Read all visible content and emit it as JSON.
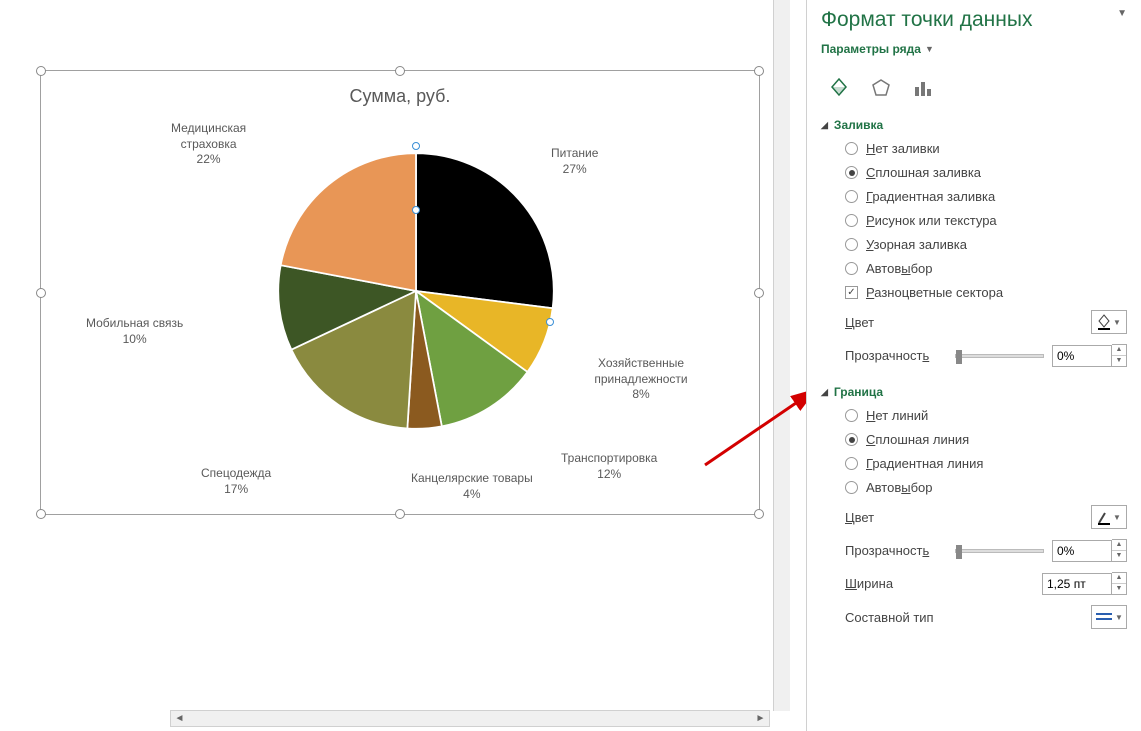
{
  "chart": {
    "title": "Сумма, руб.",
    "type": "pie",
    "background_color": "#ffffff",
    "title_color": "#595959",
    "title_fontsize": 18,
    "label_fontsize": 12,
    "label_color": "#595959",
    "slices": [
      {
        "label": "Питание",
        "percent": 27,
        "color": "#000000"
      },
      {
        "label": "Хозяйственные\nпринадлежности",
        "percent": 8,
        "color": "#e8b627"
      },
      {
        "label": "Транспортировка",
        "percent": 12,
        "color": "#6fa041"
      },
      {
        "label": "Канцелярские товары",
        "percent": 4,
        "color": "#8b5a1f"
      },
      {
        "label": "Спецодежда",
        "percent": 17,
        "color": "#8a8a3f"
      },
      {
        "label": "Мобильная связь",
        "percent": 10,
        "color": "#3d5625"
      },
      {
        "label": "Медицинская\nстраховка",
        "percent": 22,
        "color": "#e89656"
      }
    ],
    "selected_slice_handles_color": "#3a8fd6"
  },
  "panel": {
    "title": "Формат точки данных",
    "dropdown_label": "Параметры ряда",
    "sections": {
      "fill": {
        "header": "Заливка",
        "options": {
          "no_fill": "Нет заливки",
          "solid": "Сплошная заливка",
          "gradient": "Градиентная заливка",
          "picture": "Рисунок или текстура",
          "pattern": "Узорная заливка",
          "auto": "Автовыбор"
        },
        "selected": "solid",
        "vary_colors_label": "Разноцветные сектора",
        "vary_colors_checked": true,
        "color_label": "Цвет",
        "transparency_label": "Прозрачность",
        "transparency_value": "0%"
      },
      "border": {
        "header": "Граница",
        "options": {
          "no_line": "Нет линий",
          "solid": "Сплошная линия",
          "gradient": "Градиентная линия",
          "auto": "Автовыбор"
        },
        "selected": "solid",
        "color_label": "Цвет",
        "transparency_label": "Прозрачность",
        "transparency_value": "0%",
        "width_label": "Ширина",
        "width_value": "1,25 пт",
        "compound_label": "Составной тип"
      }
    }
  },
  "accent_color": "#217346"
}
